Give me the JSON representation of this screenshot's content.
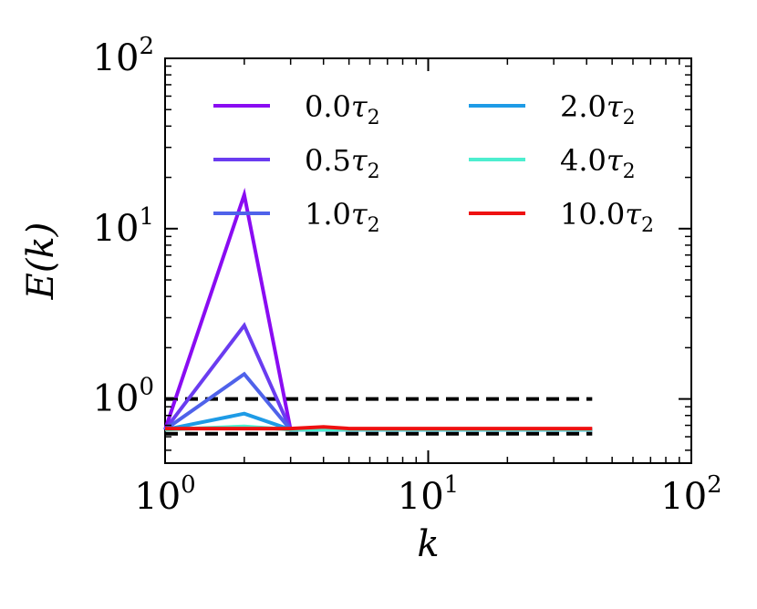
{
  "chart_data": {
    "type": "line",
    "title": "",
    "xlabel": "k",
    "ylabel": "E(k)",
    "xscale": "log",
    "yscale": "log",
    "xlim": [
      1,
      100
    ],
    "ylim": [
      0.42,
      100
    ],
    "grid": false,
    "legend_position": "top",
    "x_ticks": [
      {
        "base": "10",
        "exp": "0",
        "value": 1
      },
      {
        "base": "10",
        "exp": "1",
        "value": 10
      },
      {
        "base": "10",
        "exp": "2",
        "value": 100
      }
    ],
    "y_ticks": [
      {
        "base": "10",
        "exp": "0",
        "value": 1
      },
      {
        "base": "10",
        "exp": "1",
        "value": 10
      },
      {
        "base": "10",
        "exp": "2",
        "value": 100
      }
    ],
    "x": [
      1,
      2,
      3,
      4,
      5,
      6,
      7,
      8,
      9,
      10,
      15,
      20,
      30,
      42
    ],
    "series": [
      {
        "name": "0.0τ2",
        "label_num": "0.0",
        "color": "#8a0cf2",
        "values": [
          0.66,
          15.8,
          0.66,
          0.66,
          0.66,
          0.66,
          0.66,
          0.66,
          0.66,
          0.66,
          0.66,
          0.66,
          0.66,
          0.66
        ]
      },
      {
        "name": "0.5τ2",
        "label_num": "0.5",
        "color": "#6a3cf0",
        "values": [
          0.66,
          2.7,
          0.66,
          0.66,
          0.66,
          0.66,
          0.66,
          0.66,
          0.66,
          0.66,
          0.66,
          0.66,
          0.66,
          0.66
        ]
      },
      {
        "name": "1.0τ2",
        "label_num": "1.0",
        "color": "#4f62ea",
        "values": [
          0.66,
          1.4,
          0.66,
          0.66,
          0.66,
          0.66,
          0.66,
          0.66,
          0.66,
          0.66,
          0.66,
          0.66,
          0.66,
          0.66
        ]
      },
      {
        "name": "2.0τ2",
        "label_num": "2.0",
        "color": "#1e9be6",
        "values": [
          0.66,
          0.82,
          0.66,
          0.66,
          0.66,
          0.66,
          0.66,
          0.66,
          0.66,
          0.66,
          0.66,
          0.66,
          0.66,
          0.66
        ]
      },
      {
        "name": "4.0τ2",
        "label_num": "4.0",
        "color": "#4deecf",
        "values": [
          0.66,
          0.69,
          0.66,
          0.66,
          0.66,
          0.66,
          0.66,
          0.66,
          0.66,
          0.66,
          0.66,
          0.66,
          0.66,
          0.66
        ]
      },
      {
        "name": "10.0τ2",
        "label_num": "10.0",
        "color": "#ee1111",
        "values": [
          0.67,
          0.67,
          0.67,
          0.685,
          0.67,
          0.67,
          0.67,
          0.67,
          0.67,
          0.67,
          0.67,
          0.67,
          0.67,
          0.67
        ]
      }
    ],
    "reference_lines": [
      {
        "y": 1.0,
        "color": "#000000",
        "style": "dashed",
        "x_range": [
          1,
          42
        ]
      },
      {
        "y": 0.625,
        "color": "#000000",
        "style": "dashed",
        "x_range": [
          1,
          42
        ]
      }
    ]
  }
}
